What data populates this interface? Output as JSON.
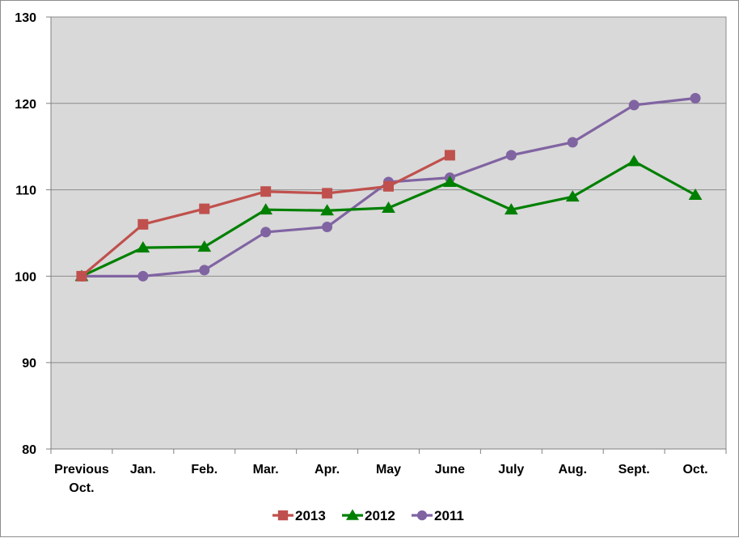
{
  "chart_data": {
    "type": "line",
    "title": "",
    "xlabel": "",
    "ylabel": "",
    "categories": [
      [
        "Previous",
        "Oct."
      ],
      [
        "Jan."
      ],
      [
        "Feb."
      ],
      [
        "Mar."
      ],
      [
        "Apr."
      ],
      [
        "May"
      ],
      [
        "June"
      ],
      [
        "July"
      ],
      [
        "Aug."
      ],
      [
        "Sept."
      ],
      [
        "Oct."
      ]
    ],
    "ylim": [
      80,
      130
    ],
    "yticks": [
      80,
      90,
      100,
      110,
      120,
      130
    ],
    "grid": true,
    "legend_position": "bottom",
    "plot_background": "#d9d9d9",
    "series": [
      {
        "name": "2013",
        "color": "#c0504d",
        "marker": "square",
        "values": [
          100.0,
          106.0,
          107.8,
          109.8,
          109.6,
          110.4,
          114.0,
          null,
          null,
          null,
          null
        ]
      },
      {
        "name": "2012",
        "color": "#008000",
        "marker": "triangle",
        "values": [
          100.0,
          103.3,
          103.4,
          107.7,
          107.6,
          107.9,
          110.9,
          107.7,
          109.2,
          113.3,
          109.4
        ]
      },
      {
        "name": "2011",
        "color": "#8064a2",
        "marker": "circle",
        "values": [
          100.0,
          100.0,
          100.7,
          105.1,
          105.7,
          110.9,
          111.4,
          114.0,
          115.5,
          119.8,
          120.6
        ]
      }
    ]
  }
}
